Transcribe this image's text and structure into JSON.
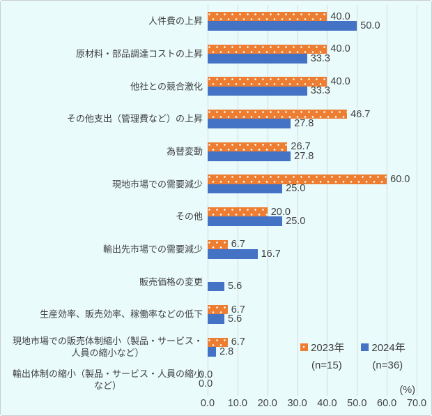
{
  "chart_data": {
    "type": "bar",
    "orientation": "horizontal",
    "title": "",
    "unit_label": "(%)",
    "xlim": [
      0,
      70
    ],
    "x_ticks": [
      0,
      10,
      20,
      30,
      40,
      50,
      60,
      70
    ],
    "grid": true,
    "legend_position": "bottom-right",
    "categories": [
      "人件費の上昇",
      "原材料・部品調達コストの上昇",
      "他社との競合激化",
      "その他支出（管理費など）の上昇",
      "為替変動",
      "現地市場での需要減少",
      "その他",
      "輸出先市場での需要減少",
      "販売価格の変更",
      "生産効率、販売効率、稼働率などの低下",
      "現地市場での販売体制縮小（製品・サービス・\n人員の縮小など）",
      "輸出体制の縮小（製品・サービス・人員の縮小\nなど）"
    ],
    "series": [
      {
        "name": "2023年",
        "sample_label": "(n=15)",
        "color": "#ED7D31",
        "pattern": "white-dots",
        "values": [
          40.0,
          40.0,
          40.0,
          46.7,
          26.7,
          60.0,
          20.0,
          6.7,
          null,
          6.7,
          6.7,
          0.0
        ]
      },
      {
        "name": "2024年",
        "sample_label": "(n=36)",
        "color": "#4472C4",
        "pattern": "solid",
        "values": [
          50.0,
          33.3,
          33.3,
          27.8,
          27.8,
          25.0,
          25.0,
          16.7,
          5.6,
          5.6,
          2.8,
          0.0
        ]
      }
    ]
  },
  "colors": {
    "background": "#EAFBFC",
    "gridline": "#D3DADB",
    "text": "#3F3F3F",
    "series_2023": "#ED7D31",
    "series_2024": "#4472C4"
  }
}
